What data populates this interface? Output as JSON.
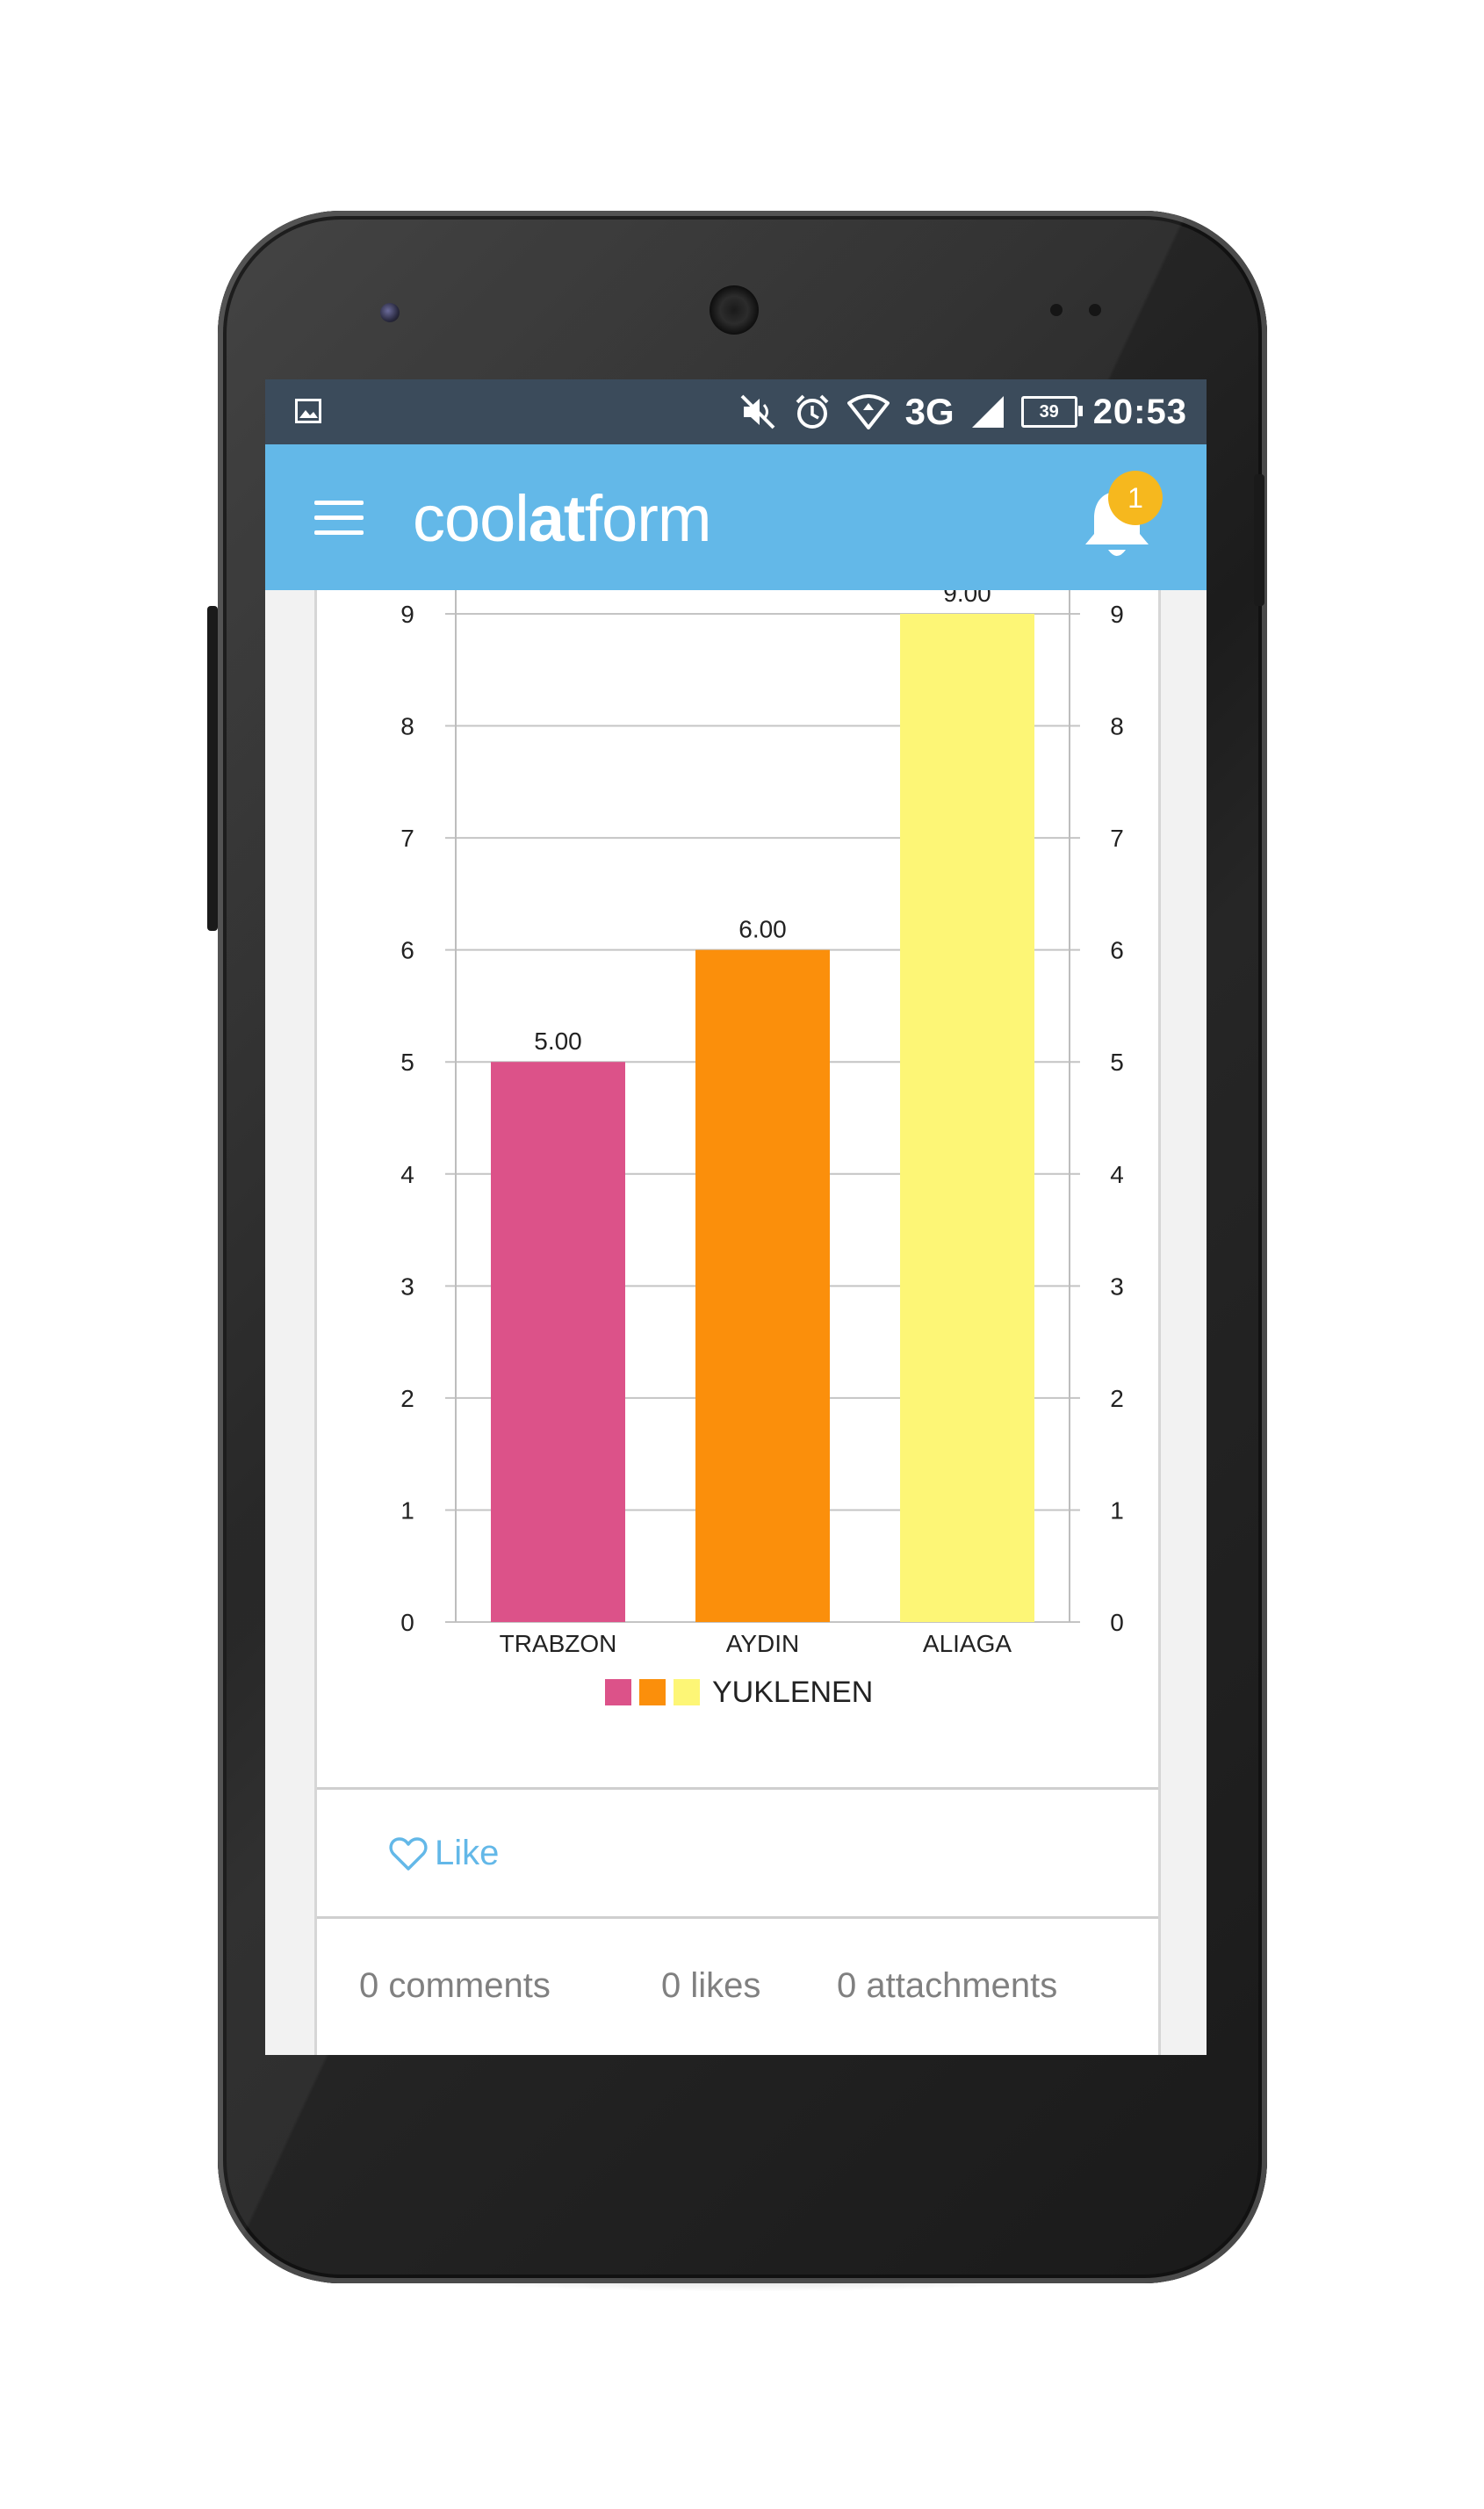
{
  "status_bar": {
    "time": "20:53",
    "network": "3G",
    "battery": "39",
    "icons": [
      "image-icon",
      "mute-icon",
      "alarm-icon",
      "wifi-icon",
      "signal-icon",
      "battery-icon"
    ]
  },
  "app_bar": {
    "logo_light_1": "cool",
    "logo_bold": "at",
    "logo_light_2": "form",
    "notification_count": "1",
    "color": "#63b8e8"
  },
  "chart_data": {
    "type": "bar",
    "categories": [
      "TRABZON",
      "AYDIN",
      "ALIAGA"
    ],
    "values": [
      5,
      6,
      9
    ],
    "value_labels": [
      "5.00",
      "6.00",
      "9.00"
    ],
    "colors": [
      "#dc5289",
      "#fb8f0b",
      "#fdf676"
    ],
    "ylim": [
      0,
      9
    ],
    "y_ticks": [
      "0",
      "1",
      "2",
      "3",
      "4",
      "5",
      "6",
      "7",
      "8",
      "9"
    ],
    "legend": "YUKLENEN",
    "grid": true
  },
  "actions": {
    "like_label": "Like"
  },
  "stats": {
    "comments": "0 comments",
    "likes": "0 likes",
    "attachments": "0 attachments"
  }
}
